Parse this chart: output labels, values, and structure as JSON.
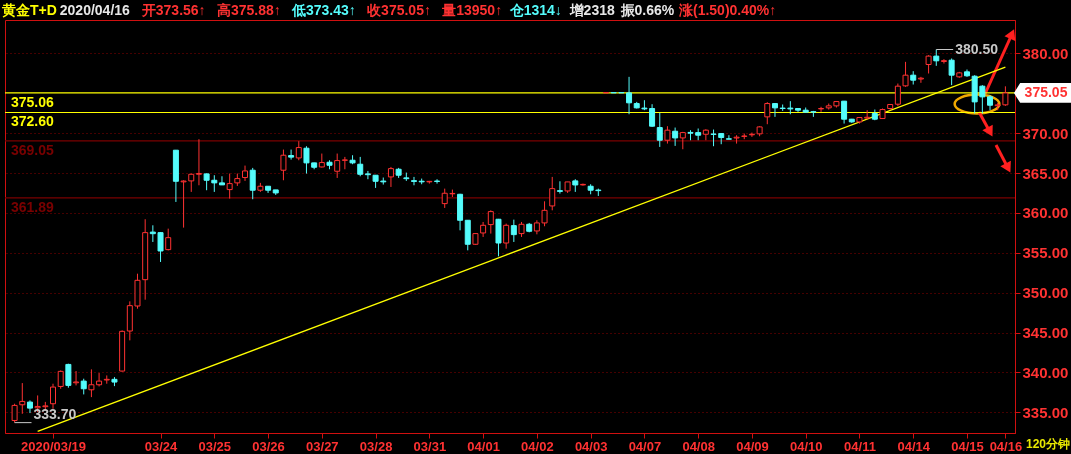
{
  "chart_data": {
    "type": "candlestick",
    "title": "黄金T+D",
    "xlabel": "120分钟",
    "subtitle": "2020/04/16 开373.56↑ 高375.88↑ 低373.43↑ 收375.05↑ 量13950↑ 仓1314↓ 增2318 振0.66% 涨(1.50)0.40%↑",
    "annotations": [
      "380.50",
      "333.70",
      "375.05"
    ],
    "categories": [
      null,
      null,
      null,
      null,
      null,
      "2020/03/19",
      null,
      null,
      null,
      null,
      null,
      null,
      null,
      null,
      null,
      null,
      null,
      null,
      null,
      "03/24",
      null,
      null,
      null,
      null,
      null,
      null,
      "03/25",
      null,
      null,
      null,
      null,
      null,
      null,
      "03/26",
      null,
      null,
      null,
      null,
      null,
      null,
      "03/27",
      null,
      null,
      null,
      null,
      null,
      null,
      "03/28",
      null,
      null,
      null,
      null,
      null,
      null,
      "03/31",
      null,
      null,
      null,
      null,
      null,
      null,
      "04/01",
      null,
      null,
      null,
      null,
      null,
      null,
      "04/02",
      null,
      null,
      null,
      null,
      null,
      null,
      "04/03",
      null,
      null,
      null,
      null,
      null,
      null,
      "04/07",
      null,
      null,
      null,
      null,
      null,
      null,
      "04/08",
      null,
      null,
      null,
      null,
      null,
      null,
      "04/09",
      null,
      null,
      null,
      null,
      null,
      null,
      "04/10",
      null,
      null,
      null,
      null,
      null,
      null,
      "04/11",
      null,
      null,
      null,
      null,
      null,
      null,
      "04/14",
      null,
      null,
      null,
      null,
      null,
      null,
      "04/15",
      null,
      null,
      null,
      null,
      "04/16"
    ],
    "ohlc": [
      [
        333.97,
        336.07,
        333.7,
        335.86
      ],
      [
        335.94,
        338.66,
        334.81,
        336.36
      ],
      [
        336.28,
        336.49,
        334.9,
        335.52
      ],
      [
        335.56,
        337.11,
        335.02,
        335.73
      ],
      [
        335.7,
        336.3,
        335.2,
        335.8
      ],
      [
        336.07,
        338.58,
        335.44,
        338.16
      ],
      [
        338.24,
        340.25,
        337.95,
        340.13
      ],
      [
        341.0,
        341.09,
        338.08,
        338.37
      ],
      [
        338.7,
        340.17,
        338.37,
        338.8
      ],
      [
        338.91,
        339.21,
        337.24,
        337.95
      ],
      [
        337.82,
        340.38,
        336.9,
        338.45
      ],
      [
        338.45,
        339.92,
        338.24,
        338.91
      ],
      [
        339.05,
        339.62,
        338.58,
        339.13
      ],
      [
        339.13,
        339.41,
        338.28,
        338.79
      ],
      [
        340.17,
        345.27,
        340.1,
        345.15
      ],
      [
        345.19,
        348.91,
        344.02,
        348.37
      ],
      [
        348.33,
        352.38,
        347.99,
        351.55
      ],
      [
        351.63,
        359.21,
        349.12,
        357.53
      ],
      [
        357.6,
        358.45,
        356.36,
        357.4
      ],
      [
        357.53,
        357.6,
        353.85,
        355.23
      ],
      [
        355.4,
        358.03,
        355.3,
        356.9
      ],
      [
        367.87,
        367.9,
        361.38,
        363.97
      ],
      [
        363.9,
        364.1,
        358.16,
        364.0
      ],
      [
        364.02,
        364.94,
        362.64,
        364.85
      ],
      [
        364.85,
        369.25,
        363.47,
        364.95
      ],
      [
        364.9,
        364.94,
        362.85,
        364.1
      ],
      [
        364.1,
        364.73,
        362.64,
        363.77
      ],
      [
        363.77,
        364.6,
        363.5,
        363.52
      ],
      [
        362.93,
        364.94,
        361.8,
        363.68
      ],
      [
        363.77,
        364.94,
        363.39,
        364.31
      ],
      [
        364.44,
        365.94,
        364.02,
        365.27
      ],
      [
        365.36,
        365.65,
        361.72,
        362.85
      ],
      [
        362.85,
        363.77,
        362.64,
        363.35
      ],
      [
        363.35,
        363.35,
        362.51,
        362.85
      ],
      [
        362.89,
        362.89,
        362.26,
        362.51
      ],
      [
        365.36,
        367.95,
        364.1,
        367.24
      ],
      [
        367.2,
        367.95,
        366.69,
        367.0
      ],
      [
        366.9,
        369.0,
        366.61,
        368.2
      ],
      [
        368.12,
        368.37,
        364.94,
        366.28
      ],
      [
        366.28,
        366.3,
        365.48,
        365.73
      ],
      [
        365.77,
        367.45,
        365.7,
        366.32
      ],
      [
        366.36,
        366.61,
        365.48,
        365.98
      ],
      [
        365.23,
        367.45,
        364.39,
        366.57
      ],
      [
        366.6,
        367.03,
        365.48,
        366.65
      ],
      [
        366.61,
        367.24,
        366.11,
        366.28
      ],
      [
        366.11,
        367.03,
        364.6,
        364.85
      ],
      [
        364.9,
        365.27,
        364.23,
        364.8
      ],
      [
        364.73,
        364.73,
        363.14,
        363.97
      ],
      [
        364.0,
        364.44,
        363.56,
        363.9
      ],
      [
        364.52,
        365.77,
        363.26,
        365.56
      ],
      [
        365.48,
        365.65,
        364.39,
        364.73
      ],
      [
        364.4,
        365.06,
        364.02,
        364.3
      ],
      [
        364.05,
        364.52,
        363.47,
        363.95
      ],
      [
        363.98,
        364.31,
        363.6,
        363.9
      ],
      [
        363.9,
        364.02,
        363.68,
        363.96
      ],
      [
        364.0,
        364.23,
        363.68,
        363.95
      ],
      [
        361.17,
        363.05,
        360.63,
        362.47
      ],
      [
        362.4,
        362.93,
        362.0,
        362.45
      ],
      [
        362.34,
        362.4,
        357.82,
        359.08
      ],
      [
        359.08,
        359.1,
        355.31,
        356.07
      ],
      [
        356.07,
        357.45,
        356.0,
        357.41
      ],
      [
        357.49,
        358.87,
        356.99,
        358.45
      ],
      [
        358.54,
        360.33,
        357.41,
        360.17
      ],
      [
        359.21,
        359.25,
        354.56,
        356.23
      ],
      [
        356.23,
        358.66,
        355.52,
        358.45
      ],
      [
        358.41,
        359.16,
        356.36,
        357.28
      ],
      [
        357.41,
        358.87,
        356.99,
        358.58
      ],
      [
        358.58,
        358.75,
        357.57,
        357.7
      ],
      [
        357.74,
        359.08,
        357.32,
        358.75
      ],
      [
        358.75,
        361.46,
        358.33,
        360.33
      ],
      [
        360.88,
        364.52,
        360.33,
        363.05
      ],
      [
        362.8,
        363.97,
        362.43,
        362.7
      ],
      [
        362.76,
        363.9,
        362.51,
        363.89
      ],
      [
        364.02,
        364.23,
        362.64,
        363.51
      ],
      [
        363.52,
        363.68,
        363.43,
        363.58
      ],
      [
        363.35,
        363.6,
        362.34,
        362.85
      ],
      [
        362.87,
        363.05,
        362.13,
        362.8
      ],
      [
        375.06,
        375.1,
        375.06,
        375.1
      ],
      [
        375.1,
        375.1,
        375.06,
        375.06
      ],
      [
        375.1,
        375.1,
        375.06,
        375.06
      ],
      [
        375.06,
        377.07,
        372.38,
        373.81
      ],
      [
        373.72,
        373.93,
        373.1,
        373.18
      ],
      [
        373.15,
        374.14,
        372.89,
        373.05
      ],
      [
        373.1,
        373.64,
        370.79,
        370.88
      ],
      [
        370.71,
        372.55,
        368.28,
        369.12
      ],
      [
        369.12,
        370.88,
        368.7,
        370.38
      ],
      [
        370.25,
        370.71,
        368.41,
        369.41
      ],
      [
        369.41,
        370.17,
        367.99,
        370.08
      ],
      [
        370.1,
        370.38,
        369.12,
        370.0
      ],
      [
        370.08,
        370.59,
        369.12,
        369.75
      ],
      [
        369.87,
        370.5,
        369.12,
        370.38
      ],
      [
        369.9,
        370.46,
        368.37,
        369.85
      ],
      [
        369.96,
        369.96,
        368.62,
        369.46
      ],
      [
        369.3,
        369.75,
        369.25,
        369.25
      ],
      [
        369.4,
        369.75,
        368.7,
        369.5
      ],
      [
        369.6,
        369.96,
        369.25,
        369.65
      ],
      [
        369.8,
        370.08,
        369.54,
        369.87
      ],
      [
        369.92,
        370.88,
        369.62,
        370.79
      ],
      [
        372.05,
        373.89,
        371.13,
        373.72
      ],
      [
        373.72,
        373.75,
        372.05,
        373.18
      ],
      [
        373.15,
        373.6,
        372.8,
        373.1
      ],
      [
        373.15,
        374.02,
        372.38,
        373.05
      ],
      [
        373.1,
        373.1,
        372.68,
        372.89
      ],
      [
        372.89,
        373.22,
        372.6,
        372.64
      ],
      [
        372.7,
        372.8,
        372.05,
        372.65
      ],
      [
        373.05,
        373.31,
        372.68,
        373.1
      ],
      [
        373.18,
        373.72,
        372.97,
        373.43
      ],
      [
        373.43,
        374.0,
        373.22,
        373.97
      ],
      [
        374.02,
        374.05,
        371.21,
        371.76
      ],
      [
        371.76,
        371.8,
        371.3,
        371.42
      ],
      [
        371.42,
        372.0,
        371.21,
        371.97
      ],
      [
        371.9,
        372.89,
        371.72,
        372.0
      ],
      [
        372.47,
        372.97,
        371.63,
        371.76
      ],
      [
        371.84,
        373.1,
        371.8,
        372.97
      ],
      [
        373.1,
        373.62,
        372.97,
        373.6
      ],
      [
        373.64,
        376.23,
        373.39,
        375.9
      ],
      [
        375.94,
        378.95,
        375.82,
        377.28
      ],
      [
        377.28,
        377.78,
        376.11,
        376.65
      ],
      [
        376.8,
        377.07,
        376.32,
        376.9
      ],
      [
        378.62,
        379.79,
        377.49,
        379.67
      ],
      [
        379.67,
        380.5,
        378.45,
        379.08
      ],
      [
        379.0,
        379.29,
        378.74,
        379.1
      ],
      [
        379.16,
        379.37,
        376.03,
        377.28
      ],
      [
        377.07,
        377.7,
        376.95,
        377.57
      ],
      [
        377.7,
        377.99,
        377.07,
        377.2
      ],
      [
        377.15,
        377.28,
        372.47,
        373.93
      ],
      [
        375.9,
        376.03,
        372.47,
        374.56
      ],
      [
        374.56,
        374.77,
        372.89,
        373.51
      ],
      [
        373.45,
        373.81,
        372.89,
        373.55
      ],
      [
        373.56,
        375.88,
        373.43,
        375.05
      ]
    ],
    "series": [
      {
        "type": "line",
        "color": "#ffff00",
        "values": [
          null,
          null,
          null,
          332.6,
          null,
          null,
          null,
          null,
          null,
          null,
          null,
          null,
          null,
          null,
          null,
          null,
          null,
          null,
          null,
          null,
          null,
          null,
          null,
          null,
          null,
          null,
          null,
          null,
          null,
          null,
          null,
          null,
          null,
          null,
          null,
          null,
          null,
          null,
          null,
          null,
          null,
          null,
          null,
          null,
          null,
          null,
          null,
          null,
          null,
          null,
          null,
          null,
          null,
          null,
          null,
          null,
          null,
          null,
          null,
          null,
          null,
          null,
          null,
          null,
          null,
          null,
          null,
          null,
          null,
          null,
          null,
          null,
          null,
          null,
          null,
          null,
          null,
          null,
          null,
          null,
          null,
          null,
          null,
          null,
          null,
          null,
          null,
          null,
          null,
          null,
          null,
          null,
          null,
          null,
          null,
          null,
          null,
          null,
          null,
          null,
          null,
          null,
          null,
          null,
          null,
          null,
          null,
          null,
          null,
          null,
          null,
          null,
          null,
          null,
          null,
          null,
          null,
          null,
          null,
          null,
          null,
          null,
          null,
          null,
          null,
          null,
          null,
          null,
          null,
          378.3
        ]
      }
    ],
    "ref_lines": [
      {
        "axis": "y",
        "value": 375.06,
        "label": "375.06",
        "color": "#ffff00"
      },
      {
        "axis": "y",
        "value": 372.6,
        "label": "372.60",
        "color": "#ffff00"
      },
      {
        "axis": "y",
        "value": 369.05,
        "label": "369.05",
        "color": "#7a0000"
      },
      {
        "axis": "y",
        "value": 361.89,
        "label": "361.89",
        "color": "#7a0000"
      }
    ],
    "ylim": [
      332.4,
      384.2
    ],
    "yticks": [
      {
        "value": 335,
        "label": "335.00"
      },
      {
        "value": 340,
        "label": "340.00"
      },
      {
        "value": 345,
        "label": "345.00"
      },
      {
        "value": 350,
        "label": "350.00"
      },
      {
        "value": 355,
        "label": "355.00"
      },
      {
        "value": 360,
        "label": "360.00"
      },
      {
        "value": 365,
        "label": "365.00"
      },
      {
        "value": 370,
        "label": "370.00"
      },
      {
        "value": 380,
        "label": "380.00"
      }
    ],
    "grid": "y"
  }
}
